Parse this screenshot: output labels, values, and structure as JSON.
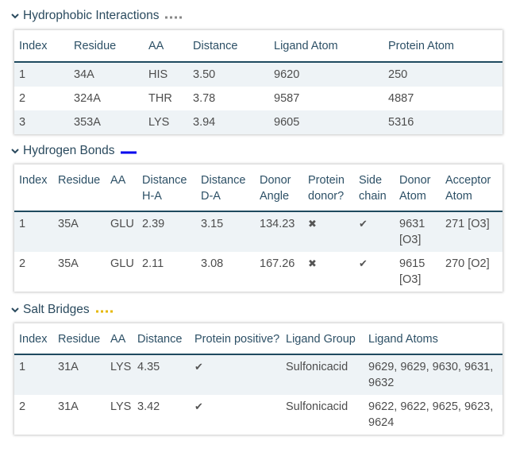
{
  "sections": [
    {
      "title": "Hydrophobic Interactions",
      "legend_color": "#888888",
      "legend_style": "dotted",
      "columns": [
        "Index",
        "Residue",
        "AA",
        "Distance",
        "Ligand Atom",
        "Protein Atom"
      ],
      "rows": [
        [
          "1",
          "34A",
          "HIS",
          "3.50",
          "9620",
          "250"
        ],
        [
          "2",
          "324A",
          "THR",
          "3.78",
          "9587",
          "4887"
        ],
        [
          "3",
          "353A",
          "LYS",
          "3.94",
          "9605",
          "5316"
        ]
      ]
    },
    {
      "title": "Hydrogen Bonds",
      "legend_color": "#0000ee",
      "legend_style": "solid",
      "columns": [
        "Index",
        "Residue",
        "AA",
        "Distance H-A",
        "Distance D-A",
        "Donor Angle",
        "Protein donor?",
        "Side chain",
        "Donor Atom",
        "Acceptor Atom"
      ],
      "rows": [
        [
          "1",
          "35A",
          "GLU",
          "2.39",
          "3.15",
          "134.23",
          "✖",
          "✔",
          "9631 [O3]",
          "271 [O3]"
        ],
        [
          "2",
          "35A",
          "GLU",
          "2.11",
          "3.08",
          "167.26",
          "✖",
          "✔",
          "9615 [O3]",
          "270 [O2]"
        ]
      ]
    },
    {
      "title": "Salt Bridges",
      "legend_color": "#e6b800",
      "legend_style": "dotted",
      "columns": [
        "Index",
        "Residue",
        "AA",
        "Distance",
        "Protein positive?",
        "Ligand Group",
        "Ligand Atoms"
      ],
      "rows": [
        [
          "1",
          "31A",
          "LYS",
          "4.35",
          "✔",
          "Sulfonicacid",
          "9629, 9629, 9630, 9631, 9632"
        ],
        [
          "2",
          "31A",
          "LYS",
          "3.42",
          "✔",
          "Sulfonicacid",
          "9622, 9622, 9625, 9623, 9624"
        ]
      ]
    }
  ]
}
